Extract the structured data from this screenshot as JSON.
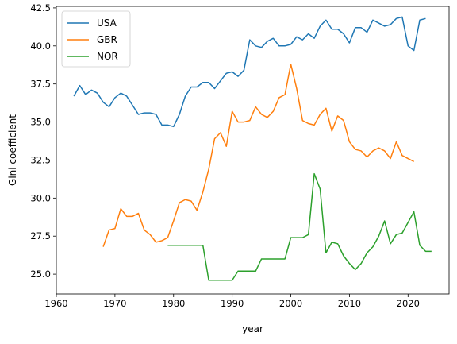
{
  "chart_data": {
    "type": "line",
    "title": "",
    "xlabel": "year",
    "ylabel": "Gini coefficient",
    "xlim": [
      1960,
      2027
    ],
    "ylim": [
      23.7,
      42.6
    ],
    "xticks": [
      1960,
      1970,
      1980,
      1990,
      2000,
      2010,
      2020
    ],
    "yticks": [
      25.0,
      27.5,
      30.0,
      32.5,
      35.0,
      37.5,
      40.0,
      42.5
    ],
    "grid": false,
    "legend_position": "top-left",
    "series": [
      {
        "name": "USA",
        "color": "#1f77b4",
        "points": [
          [
            1963,
            36.7
          ],
          [
            1964,
            37.4
          ],
          [
            1965,
            36.8
          ],
          [
            1966,
            37.1
          ],
          [
            1967,
            36.9
          ],
          [
            1968,
            36.3
          ],
          [
            1969,
            36.0
          ],
          [
            1970,
            36.6
          ],
          [
            1971,
            36.9
          ],
          [
            1972,
            36.7
          ],
          [
            1973,
            36.1
          ],
          [
            1974,
            35.5
          ],
          [
            1975,
            35.6
          ],
          [
            1976,
            35.6
          ],
          [
            1977,
            35.5
          ],
          [
            1978,
            34.8
          ],
          [
            1979,
            34.8
          ],
          [
            1980,
            34.7
          ],
          [
            1981,
            35.5
          ],
          [
            1982,
            36.7
          ],
          [
            1983,
            37.3
          ],
          [
            1984,
            37.3
          ],
          [
            1985,
            37.6
          ],
          [
            1986,
            37.6
          ],
          [
            1987,
            37.2
          ],
          [
            1988,
            37.7
          ],
          [
            1989,
            38.2
          ],
          [
            1990,
            38.3
          ],
          [
            1991,
            38.0
          ],
          [
            1992,
            38.4
          ],
          [
            1993,
            40.4
          ],
          [
            1994,
            40.0
          ],
          [
            1995,
            39.9
          ],
          [
            1996,
            40.3
          ],
          [
            1997,
            40.5
          ],
          [
            1998,
            40.0
          ],
          [
            1999,
            40.0
          ],
          [
            2000,
            40.1
          ],
          [
            2001,
            40.6
          ],
          [
            2002,
            40.4
          ],
          [
            2003,
            40.8
          ],
          [
            2004,
            40.5
          ],
          [
            2005,
            41.3
          ],
          [
            2006,
            41.7
          ],
          [
            2007,
            41.1
          ],
          [
            2008,
            41.1
          ],
          [
            2009,
            40.8
          ],
          [
            2010,
            40.2
          ],
          [
            2011,
            41.2
          ],
          [
            2012,
            41.2
          ],
          [
            2013,
            40.9
          ],
          [
            2014,
            41.7
          ],
          [
            2015,
            41.5
          ],
          [
            2016,
            41.3
          ],
          [
            2017,
            41.4
          ],
          [
            2018,
            41.8
          ],
          [
            2019,
            41.9
          ],
          [
            2020,
            40.0
          ],
          [
            2021,
            39.7
          ],
          [
            2022,
            41.7
          ],
          [
            2023,
            41.8
          ]
        ]
      },
      {
        "name": "GBR",
        "color": "#ff7f0e",
        "points": [
          [
            1968,
            26.8
          ],
          [
            1969,
            27.9
          ],
          [
            1970,
            28.0
          ],
          [
            1971,
            29.3
          ],
          [
            1972,
            28.8
          ],
          [
            1973,
            28.8
          ],
          [
            1974,
            29.0
          ],
          [
            1975,
            27.9
          ],
          [
            1976,
            27.6
          ],
          [
            1977,
            27.1
          ],
          [
            1978,
            27.2
          ],
          [
            1979,
            27.4
          ],
          [
            1980,
            28.5
          ],
          [
            1981,
            29.7
          ],
          [
            1982,
            29.9
          ],
          [
            1983,
            29.8
          ],
          [
            1984,
            29.2
          ],
          [
            1985,
            30.4
          ],
          [
            1986,
            31.9
          ],
          [
            1987,
            33.9
          ],
          [
            1988,
            34.3
          ],
          [
            1989,
            33.4
          ],
          [
            1990,
            35.7
          ],
          [
            1991,
            35.0
          ],
          [
            1992,
            35.0
          ],
          [
            1993,
            35.1
          ],
          [
            1994,
            36.0
          ],
          [
            1995,
            35.5
          ],
          [
            1996,
            35.3
          ],
          [
            1997,
            35.7
          ],
          [
            1998,
            36.6
          ],
          [
            1999,
            36.8
          ],
          [
            2000,
            38.8
          ],
          [
            2001,
            37.2
          ],
          [
            2002,
            35.1
          ],
          [
            2003,
            34.9
          ],
          [
            2004,
            34.8
          ],
          [
            2005,
            35.5
          ],
          [
            2006,
            35.9
          ],
          [
            2007,
            34.4
          ],
          [
            2008,
            35.4
          ],
          [
            2009,
            35.1
          ],
          [
            2010,
            33.7
          ],
          [
            2011,
            33.2
          ],
          [
            2012,
            33.1
          ],
          [
            2013,
            32.7
          ],
          [
            2014,
            33.1
          ],
          [
            2015,
            33.3
          ],
          [
            2016,
            33.1
          ],
          [
            2017,
            32.6
          ],
          [
            2018,
            33.7
          ],
          [
            2019,
            32.8
          ],
          [
            2020,
            32.6
          ],
          [
            2021,
            32.4
          ]
        ]
      },
      {
        "name": "NOR",
        "color": "#2ca02c",
        "points": [
          [
            1979,
            26.9
          ],
          [
            1980,
            26.9
          ],
          [
            1981,
            26.9
          ],
          [
            1982,
            26.9
          ],
          [
            1983,
            26.9
          ],
          [
            1984,
            26.9
          ],
          [
            1985,
            26.9
          ],
          [
            1986,
            24.6
          ],
          [
            1987,
            24.6
          ],
          [
            1988,
            24.6
          ],
          [
            1989,
            24.6
          ],
          [
            1990,
            24.6
          ],
          [
            1991,
            25.2
          ],
          [
            1992,
            25.2
          ],
          [
            1993,
            25.2
          ],
          [
            1994,
            25.2
          ],
          [
            1995,
            26.0
          ],
          [
            1996,
            26.0
          ],
          [
            1997,
            26.0
          ],
          [
            1998,
            26.0
          ],
          [
            1999,
            26.0
          ],
          [
            2000,
            27.4
          ],
          [
            2001,
            27.4
          ],
          [
            2002,
            27.4
          ],
          [
            2003,
            27.6
          ],
          [
            2004,
            31.6
          ],
          [
            2005,
            30.6
          ],
          [
            2006,
            26.4
          ],
          [
            2007,
            27.1
          ],
          [
            2008,
            27.0
          ],
          [
            2009,
            26.2
          ],
          [
            2010,
            25.7
          ],
          [
            2011,
            25.3
          ],
          [
            2012,
            25.7
          ],
          [
            2013,
            26.4
          ],
          [
            2014,
            26.8
          ],
          [
            2015,
            27.5
          ],
          [
            2016,
            28.5
          ],
          [
            2017,
            27.0
          ],
          [
            2018,
            27.6
          ],
          [
            2019,
            27.7
          ],
          [
            2020,
            28.4
          ],
          [
            2021,
            29.1
          ],
          [
            2022,
            26.9
          ],
          [
            2023,
            26.5
          ],
          [
            2024,
            26.5
          ]
        ]
      }
    ]
  }
}
